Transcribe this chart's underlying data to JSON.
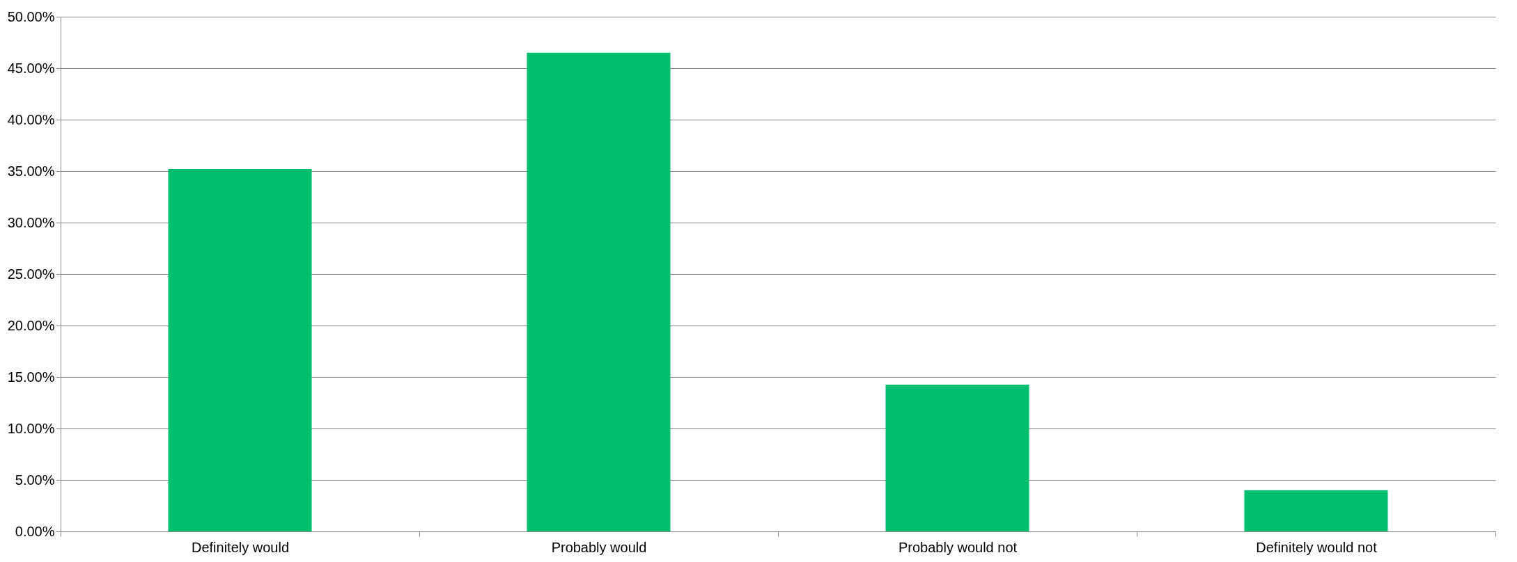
{
  "chart_data": {
    "type": "bar",
    "categories": [
      "Definitely would",
      "Probably would",
      "Probably would not",
      "Definitely would not"
    ],
    "values": [
      35.2,
      46.5,
      14.25,
      4.0
    ],
    "color": "#00bf6f",
    "ylim": [
      0,
      50
    ],
    "yticks": [
      {
        "value": 0,
        "label": "0.00%"
      },
      {
        "value": 5,
        "label": "5.00%"
      },
      {
        "value": 10,
        "label": "10.00%"
      },
      {
        "value": 15,
        "label": "15.00%"
      },
      {
        "value": 20,
        "label": "20.00%"
      },
      {
        "value": 25,
        "label": "25.00%"
      },
      {
        "value": 30,
        "label": "30.00%"
      },
      {
        "value": 35,
        "label": "35.00%"
      },
      {
        "value": 40,
        "label": "40.00%"
      },
      {
        "value": 45,
        "label": "45.00%"
      },
      {
        "value": 50,
        "label": "50.00%"
      }
    ],
    "grid": "y"
  }
}
